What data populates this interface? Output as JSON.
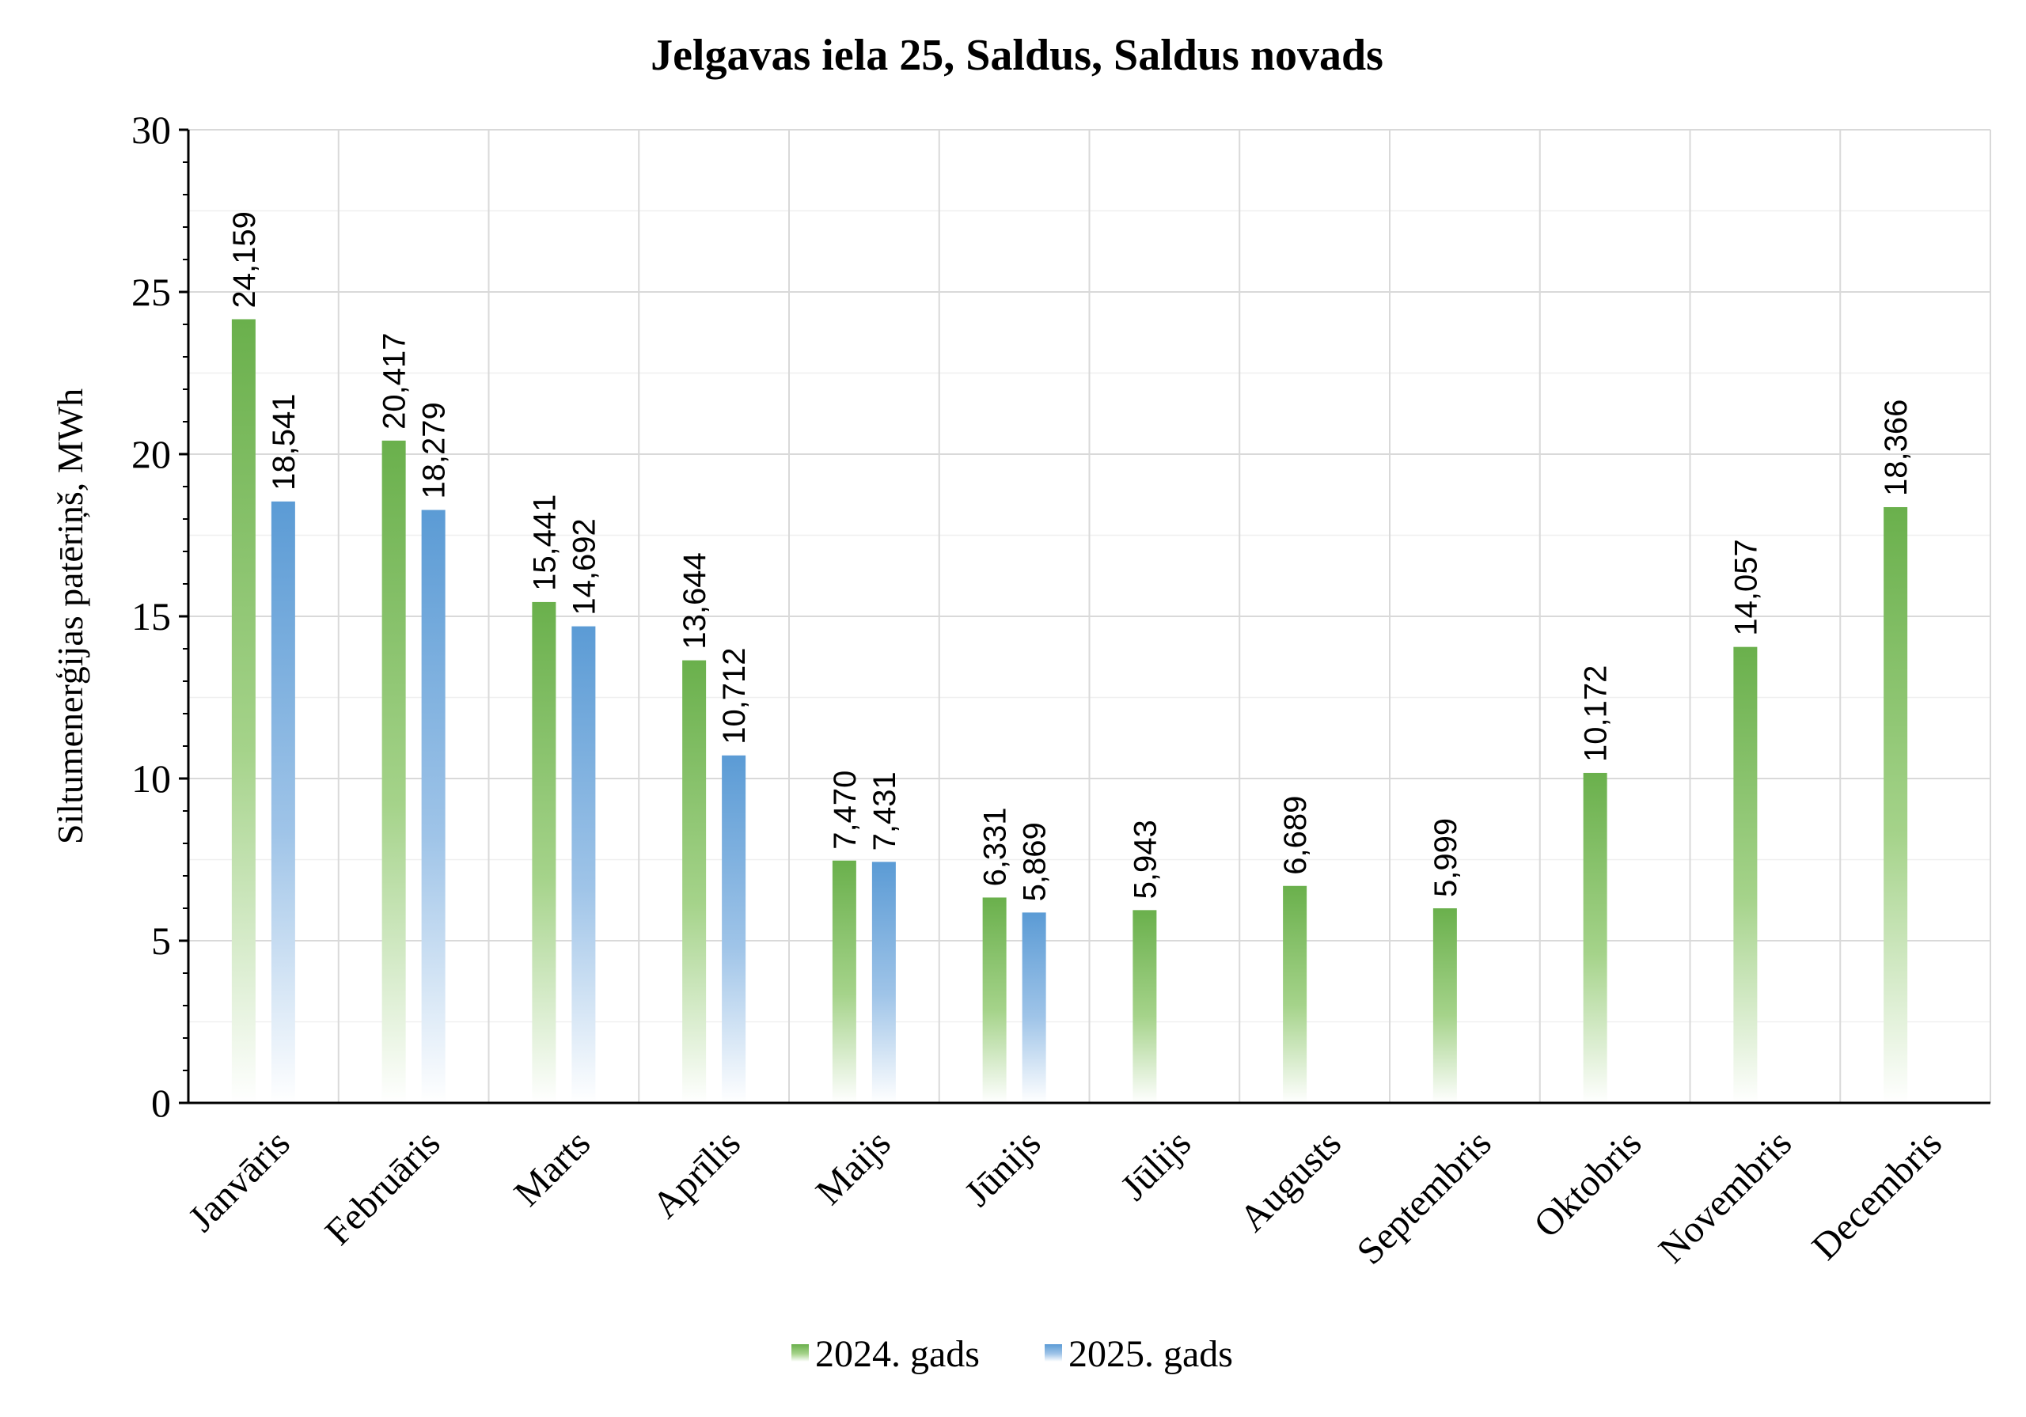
{
  "chart_data": {
    "type": "bar",
    "title": "Jelgavas iela 25, Saldus, Saldus novads",
    "xlabel": "",
    "ylabel": "Siltumenerģijas patēriņš, MWh",
    "ylim": [
      0,
      30
    ],
    "yticks": [
      "0",
      "5",
      "10",
      "15",
      "20",
      "25",
      "30"
    ],
    "grid": true,
    "legend_position": "bottom",
    "categories": [
      "Janvāris",
      "Februāris",
      "Marts",
      "Aprīlis",
      "Maijs",
      "Jūnijs",
      "Jūlijs",
      "Augusts",
      "Septembris",
      "Oktobris",
      "Novembris",
      "Decembris"
    ],
    "series": [
      {
        "name": "2024. gads",
        "color": "#6ab04c",
        "values": [
          24.159,
          20.417,
          15.441,
          13.644,
          7.47,
          6.331,
          5.943,
          6.689,
          5.999,
          10.172,
          14.057,
          18.366
        ],
        "labels": [
          "24,159",
          "20,417",
          "15,441",
          "13,644",
          "7,470",
          "6,331",
          "5,943",
          "6,689",
          "5,999",
          "10,172",
          "14,057",
          "18,366"
        ]
      },
      {
        "name": "2025. gads",
        "color": "#5b9bd5",
        "values": [
          18.541,
          18.279,
          14.692,
          10.712,
          7.431,
          5.869,
          null,
          null,
          null,
          null,
          null,
          null
        ],
        "labels": [
          "18,541",
          "18,279",
          "14,692",
          "10,712",
          "7,431",
          "5,869",
          "",
          "",
          "",
          "",
          "",
          ""
        ]
      }
    ]
  }
}
